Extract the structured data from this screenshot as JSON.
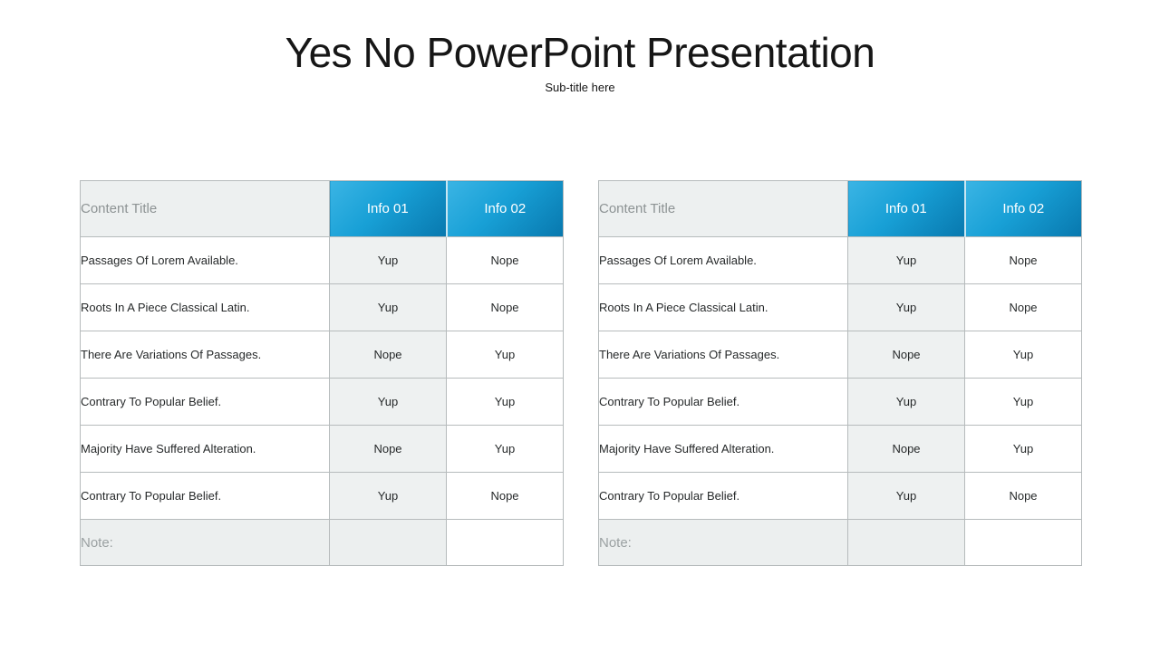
{
  "slide": {
    "title": "Yes No PowerPoint Presentation",
    "subtitle": "Sub-title here"
  },
  "colors": {
    "accent_blue_top": "#3ab4e4",
    "accent_blue_bottom": "#0878ae",
    "header_gray_bg": "#edf0f0",
    "header_gray_text": "#8d9394",
    "info01_column_bg": "#eef1f1",
    "note_row_bg": "#ecefef",
    "table_border": "#b6bbbc",
    "body_text": "#26292a",
    "note_text": "#9ba1a2"
  },
  "tables": [
    {
      "header": {
        "content_title": "Content Title",
        "info_01": "Info 01",
        "info_02": "Info 02"
      },
      "rows": [
        {
          "label": "Passages Of Lorem Available.",
          "info_01": "Yup",
          "info_02": "Nope"
        },
        {
          "label": "Roots In A Piece Classical Latin.",
          "info_01": "Yup",
          "info_02": "Nope"
        },
        {
          "label": "There Are Variations Of Passages.",
          "info_01": "Nope",
          "info_02": "Yup"
        },
        {
          "label": "Contrary To Popular Belief.",
          "info_01": "Yup",
          "info_02": "Yup"
        },
        {
          "label": "Majority Have Suffered Alteration.",
          "info_01": "Nope",
          "info_02": "Yup"
        },
        {
          "label": "Contrary To Popular Belief.",
          "info_01": "Yup",
          "info_02": "Nope"
        }
      ],
      "note_label": "Note:"
    },
    {
      "header": {
        "content_title": "Content Title",
        "info_01": "Info 01",
        "info_02": "Info 02"
      },
      "rows": [
        {
          "label": "Passages Of Lorem Available.",
          "info_01": "Yup",
          "info_02": "Nope"
        },
        {
          "label": "Roots In A Piece Classical Latin.",
          "info_01": "Yup",
          "info_02": "Nope"
        },
        {
          "label": "There Are Variations Of Passages.",
          "info_01": "Nope",
          "info_02": "Yup"
        },
        {
          "label": "Contrary To Popular Belief.",
          "info_01": "Yup",
          "info_02": "Yup"
        },
        {
          "label": "Majority Have Suffered Alteration.",
          "info_01": "Nope",
          "info_02": "Yup"
        },
        {
          "label": "Contrary To Popular Belief.",
          "info_01": "Yup",
          "info_02": "Nope"
        }
      ],
      "note_label": "Note:"
    }
  ]
}
